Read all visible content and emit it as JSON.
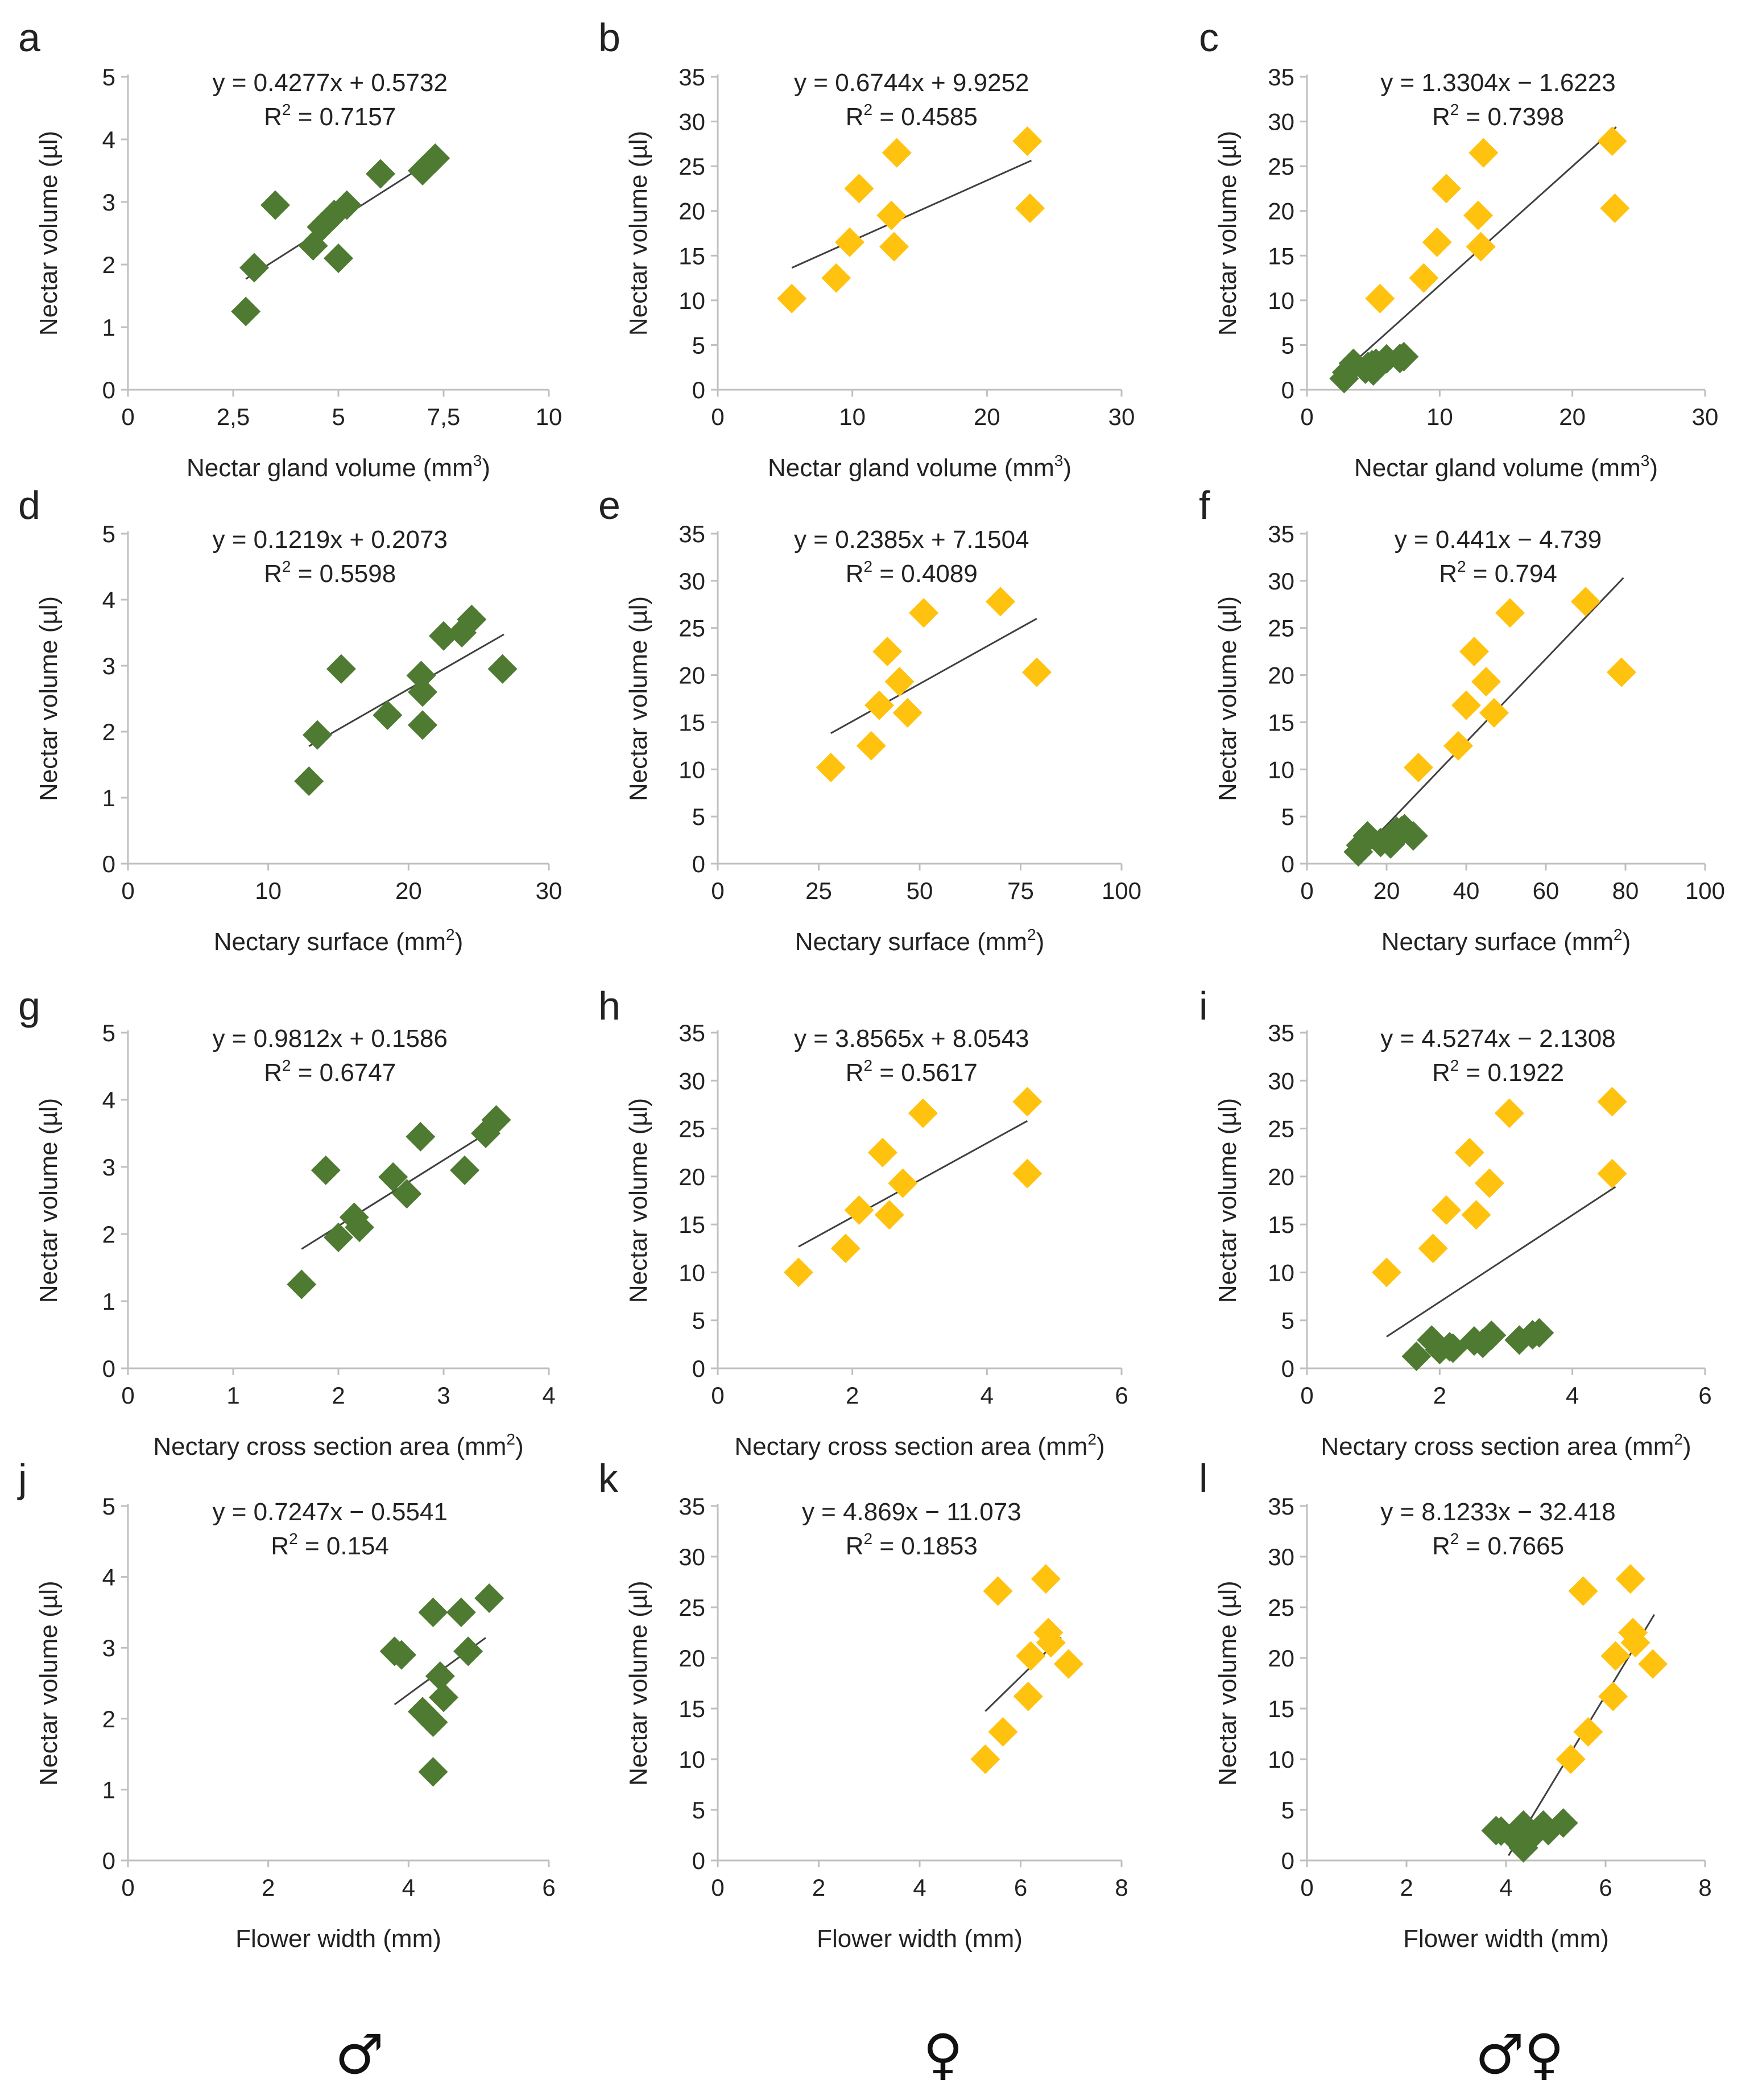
{
  "colors": {
    "male": "#4e7a32",
    "female": "#ffc20e",
    "axis": "#bfbfbf",
    "trend": "#404040"
  },
  "footer": {
    "male_symbol": "♂",
    "female_symbol": "♀",
    "both_symbol": "♂♀"
  },
  "chart_data": [
    {
      "id": "a",
      "type": "scatter",
      "ylabel": "Nectar volume (µl)",
      "xlabel_text": "Nectar gland volume (mm",
      "xlabel_sup": "3",
      "xlabel_end": ")",
      "xticks": [
        "0",
        "2,5",
        "5",
        "7,5",
        "10"
      ],
      "xlim": [
        0,
        10
      ],
      "yticks": [
        "0",
        "1",
        "2",
        "3",
        "4",
        "5"
      ],
      "ylim": [
        0,
        5
      ],
      "equation": "y = 0.4277x + 0.5732",
      "r2_label": "R",
      "r2_sup": "2",
      "r2_value": " = 0.7157",
      "trend_x": [
        2.8,
        7.3
      ],
      "series": [
        {
          "name": "male",
          "color": "#4e7a32",
          "x": [
            2.8,
            3,
            3.5,
            4.4,
            4.6,
            4.9,
            5.2,
            5,
            6,
            7,
            7.3
          ],
          "y": [
            1.25,
            1.95,
            2.95,
            2.3,
            2.6,
            2.8,
            2.95,
            2.1,
            3.45,
            3.5,
            3.7
          ]
        }
      ]
    },
    {
      "id": "b",
      "type": "scatter",
      "ylabel": "Nectar volume (µl)",
      "xlabel_text": "Nectar gland volume (mm",
      "xlabel_sup": "3",
      "xlabel_end": ")",
      "xticks": [
        "0",
        "10",
        "20",
        "30"
      ],
      "xlim": [
        0,
        30
      ],
      "yticks": [
        "0",
        "5",
        "10",
        "15",
        "20",
        "25",
        "30",
        "35"
      ],
      "ylim": [
        0,
        35
      ],
      "equation": "y = 0.6744x + 9.9252",
      "r2_label": "R",
      "r2_sup": "2",
      "r2_value": " = 0.4585",
      "trend_x": [
        5.5,
        23.3
      ],
      "series": [
        {
          "name": "female",
          "color": "#ffc20e",
          "x": [
            5.5,
            8.8,
            9.8,
            10.5,
            12.9,
            13.3,
            13.1,
            23,
            23.2
          ],
          "y": [
            10.2,
            12.5,
            16.5,
            22.5,
            19.5,
            26.5,
            16,
            27.8,
            20.3
          ]
        }
      ]
    },
    {
      "id": "c",
      "type": "scatter",
      "ylabel": "Nectar volume (µl)",
      "xlabel_text": "Nectar gland volume (mm",
      "xlabel_sup": "3",
      "xlabel_end": ")",
      "xticks": [
        "0",
        "10",
        "20",
        "30"
      ],
      "xlim": [
        0,
        30
      ],
      "yticks": [
        "0",
        "5",
        "10",
        "15",
        "20",
        "25",
        "30",
        "35"
      ],
      "ylim": [
        0,
        35
      ],
      "equation": "y = 1.3304x − 1.6223",
      "r2_label": "R",
      "r2_sup": "2",
      "r2_value": " = 0.7398",
      "trend_x": [
        2.8,
        23.3
      ],
      "series": [
        {
          "name": "female",
          "color": "#ffc20e",
          "x": [
            5.5,
            8.8,
            9.8,
            10.5,
            12.9,
            13.3,
            13.1,
            23,
            23.2
          ],
          "y": [
            10.2,
            12.5,
            16.5,
            22.5,
            19.5,
            26.5,
            16,
            27.8,
            20.3
          ]
        },
        {
          "name": "male",
          "color": "#4e7a32",
          "x": [
            2.8,
            3,
            3.5,
            4.4,
            4.6,
            4.9,
            5.2,
            5,
            6,
            7,
            7.3
          ],
          "y": [
            1.25,
            1.95,
            2.95,
            2.3,
            2.6,
            2.8,
            2.95,
            2.1,
            3.45,
            3.5,
            3.7
          ]
        }
      ]
    },
    {
      "id": "d",
      "type": "scatter",
      "ylabel": "Nectar volume (µl)",
      "xlabel_text": "Nectary surface (mm",
      "xlabel_sup": "2",
      "xlabel_end": ")",
      "xticks": [
        "0",
        "10",
        "20",
        "30"
      ],
      "xlim": [
        0,
        30
      ],
      "yticks": [
        "0",
        "1",
        "2",
        "3",
        "4",
        "5"
      ],
      "ylim": [
        0,
        5
      ],
      "equation": "y = 0.1219x + 0.2073",
      "r2_label": "R",
      "r2_sup": "2",
      "r2_value": " = 0.5598",
      "trend_x": [
        12.9,
        26.8
      ],
      "series": [
        {
          "name": "male",
          "color": "#4e7a32",
          "x": [
            12.9,
            13.5,
            15.2,
            18.5,
            20.9,
            21,
            21,
            22.5,
            23.8,
            24.5,
            26.7
          ],
          "y": [
            1.25,
            1.95,
            2.95,
            2.25,
            2.85,
            2.6,
            2.1,
            3.45,
            3.5,
            3.7,
            2.95
          ]
        }
      ]
    },
    {
      "id": "e",
      "type": "scatter",
      "ylabel": "Nectar volume (µl)",
      "xlabel_text": "Nectary surface (mm",
      "xlabel_sup": "2",
      "xlabel_end": ")",
      "xticks": [
        "0",
        "25",
        "50",
        "75",
        "100"
      ],
      "xlim": [
        0,
        100
      ],
      "yticks": [
        "0",
        "5",
        "10",
        "15",
        "20",
        "25",
        "30",
        "35"
      ],
      "ylim": [
        0,
        35
      ],
      "equation": "y = 0.2385x + 7.1504",
      "r2_label": "R",
      "r2_sup": "2",
      "r2_value": " = 0.4089",
      "trend_x": [
        28,
        79
      ],
      "series": [
        {
          "name": "female",
          "color": "#ffc20e",
          "x": [
            28,
            38,
            40,
            42,
            45,
            47,
            51,
            70,
            79
          ],
          "y": [
            10.2,
            12.5,
            16.8,
            22.5,
            19.3,
            16,
            26.6,
            27.8,
            20.3
          ]
        }
      ]
    },
    {
      "id": "f",
      "type": "scatter",
      "ylabel": "Nectar volume (µl)",
      "xlabel_text": "Nectary surface (mm",
      "xlabel_sup": "2",
      "xlabel_end": ")",
      "xticks": [
        "0",
        "20",
        "40",
        "60",
        "80",
        "100"
      ],
      "xlim": [
        0,
        100
      ],
      "yticks": [
        "0",
        "5",
        "10",
        "15",
        "20",
        "25",
        "30",
        "35"
      ],
      "ylim": [
        0,
        35
      ],
      "equation": "y = 0.441x − 4.739",
      "r2_label": "R",
      "r2_sup": "2",
      "r2_value": " = 0.794",
      "trend_x": [
        12.9,
        79.5
      ],
      "series": [
        {
          "name": "female",
          "color": "#ffc20e",
          "x": [
            28,
            38,
            40,
            42,
            45,
            47,
            51,
            70,
            79
          ],
          "y": [
            10.2,
            12.5,
            16.8,
            22.5,
            19.3,
            16,
            26.6,
            27.8,
            20.3
          ]
        },
        {
          "name": "male",
          "color": "#4e7a32",
          "x": [
            12.9,
            13.5,
            15.2,
            18.5,
            20.9,
            21,
            21,
            22.5,
            23.8,
            24.5,
            26.7
          ],
          "y": [
            1.25,
            1.95,
            2.95,
            2.25,
            2.85,
            2.6,
            2.1,
            3.45,
            3.5,
            3.7,
            2.95
          ]
        }
      ]
    },
    {
      "id": "g",
      "type": "scatter",
      "ylabel": "Nectar volume (µl)",
      "xlabel_text": "Nectary cross section area (mm",
      "xlabel_sup": "2",
      "xlabel_end": ")",
      "xticks": [
        "0",
        "1",
        "2",
        "3",
        "4"
      ],
      "xlim": [
        0,
        4
      ],
      "yticks": [
        "0",
        "1",
        "2",
        "3",
        "4",
        "5"
      ],
      "ylim": [
        0,
        5
      ],
      "equation": "y = 0.9812x + 0.1586",
      "r2_label": "R",
      "r2_sup": "2",
      "r2_value": " = 0.6747",
      "trend_x": [
        1.65,
        3.5
      ],
      "series": [
        {
          "name": "male",
          "color": "#4e7a32",
          "x": [
            1.65,
            1.88,
            2,
            2.15,
            2.2,
            2.52,
            2.65,
            2.78,
            3.2,
            3.4,
            3.5
          ],
          "y": [
            1.25,
            2.95,
            1.95,
            2.25,
            2.1,
            2.85,
            2.6,
            3.45,
            2.95,
            3.5,
            3.7
          ]
        }
      ]
    },
    {
      "id": "h",
      "type": "scatter",
      "ylabel": "Nectar volume (µl)",
      "xlabel_text": "Nectary cross section area (mm",
      "xlabel_sup": "2",
      "xlabel_end": ")",
      "xticks": [
        "0",
        "2",
        "4",
        "6"
      ],
      "xlim": [
        0,
        6
      ],
      "yticks": [
        "0",
        "5",
        "10",
        "15",
        "20",
        "25",
        "30",
        "35"
      ],
      "ylim": [
        0,
        35
      ],
      "equation": "y = 3.8565x + 8.0543",
      "r2_label": "R",
      "r2_sup": "2",
      "r2_value": " = 0.5617",
      "trend_x": [
        1.2,
        4.6
      ],
      "series": [
        {
          "name": "female",
          "color": "#ffc20e",
          "x": [
            1.2,
            1.9,
            2.1,
            2.45,
            2.55,
            2.75,
            3.05,
            4.6,
            4.6
          ],
          "y": [
            10,
            12.5,
            16.5,
            22.5,
            16,
            19.3,
            26.6,
            27.8,
            20.3
          ]
        }
      ]
    },
    {
      "id": "i",
      "type": "scatter",
      "ylabel": "Nectar volume (µl)",
      "xlabel_text": "Nectary cross section area (mm",
      "xlabel_sup": "2",
      "xlabel_end": ")",
      "xticks": [
        "0",
        "2",
        "4",
        "6"
      ],
      "xlim": [
        0,
        6
      ],
      "yticks": [
        "0",
        "5",
        "10",
        "15",
        "20",
        "25",
        "30",
        "35"
      ],
      "ylim": [
        0,
        35
      ],
      "equation": "y = 4.5274x − 2.1308",
      "r2_label": "R",
      "r2_sup": "2",
      "r2_value": " = 0.1922",
      "trend_x": [
        1.2,
        4.65
      ],
      "series": [
        {
          "name": "female",
          "color": "#ffc20e",
          "x": [
            1.2,
            1.9,
            2.1,
            2.45,
            2.55,
            2.75,
            3.05,
            4.6,
            4.6
          ],
          "y": [
            10,
            12.5,
            16.5,
            22.5,
            16,
            19.3,
            26.6,
            27.8,
            20.3
          ]
        },
        {
          "name": "male",
          "color": "#4e7a32",
          "x": [
            1.65,
            1.88,
            2,
            2.15,
            2.2,
            2.52,
            2.65,
            2.78,
            3.2,
            3.4,
            3.5
          ],
          "y": [
            1.25,
            2.95,
            1.95,
            2.25,
            2.1,
            2.85,
            2.6,
            3.45,
            2.95,
            3.5,
            3.7
          ]
        }
      ]
    },
    {
      "id": "j",
      "type": "scatter",
      "ylabel": "Nectar volume (µl)",
      "xlabel_text": "Flower width (mm)",
      "xlabel_sup": "",
      "xlabel_end": "",
      "xticks": [
        "0",
        "2",
        "4",
        "6"
      ],
      "xlim": [
        0,
        6
      ],
      "yticks": [
        "0",
        "1",
        "2",
        "3",
        "4",
        "5"
      ],
      "ylim": [
        0,
        5
      ],
      "equation": "y = 0.7247x − 0.5541",
      "r2_label": "R",
      "r2_sup": "2",
      "r2_value": " = 0.154",
      "trend_x": [
        3.8,
        5.1
      ],
      "series": [
        {
          "name": "male",
          "color": "#4e7a32",
          "x": [
            3.8,
            3.9,
            4.2,
            4.35,
            4.35,
            4.35,
            4.45,
            4.5,
            4.75,
            4.85,
            5.15
          ],
          "y": [
            2.95,
            2.9,
            2.1,
            1.95,
            1.25,
            3.5,
            2.6,
            2.3,
            3.5,
            2.95,
            3.7
          ]
        }
      ]
    },
    {
      "id": "k",
      "type": "scatter",
      "ylabel": "Nectar volume (µl)",
      "xlabel_text": "Flower width (mm)",
      "xlabel_sup": "",
      "xlabel_end": "",
      "xticks": [
        "0",
        "2",
        "4",
        "6",
        "8"
      ],
      "xlim": [
        0,
        8
      ],
      "yticks": [
        "0",
        "5",
        "10",
        "15",
        "20",
        "25",
        "30",
        "35"
      ],
      "ylim": [
        0,
        35
      ],
      "equation": "y = 4.869x − 11.073",
      "r2_label": "R",
      "r2_sup": "2",
      "r2_value": " = 0.1853",
      "trend_x": [
        5.3,
        6.8
      ],
      "series": [
        {
          "name": "female",
          "color": "#ffc20e",
          "x": [
            5.3,
            5.55,
            5.65,
            6.15,
            6.2,
            6.5,
            6.55,
            6.6,
            6.95
          ],
          "y": [
            10,
            26.6,
            12.7,
            16.2,
            20.2,
            27.8,
            22.5,
            21.5,
            19.4
          ]
        }
      ]
    },
    {
      "id": "l",
      "type": "scatter",
      "ylabel": "Nectar volume (µl)",
      "xlabel_text": "Flower width (mm)",
      "xlabel_sup": "",
      "xlabel_end": "",
      "xticks": [
        "0",
        "2",
        "4",
        "6",
        "8"
      ],
      "xlim": [
        0,
        8
      ],
      "yticks": [
        "0",
        "5",
        "10",
        "15",
        "20",
        "25",
        "30",
        "35"
      ],
      "ylim": [
        0,
        35
      ],
      "equation": "y = 8.1233x − 32.418",
      "r2_label": "R",
      "r2_sup": "2",
      "r2_value": " = 0.7665",
      "trend_x": [
        4.05,
        6.98
      ],
      "series": [
        {
          "name": "female",
          "color": "#ffc20e",
          "x": [
            5.3,
            5.55,
            5.65,
            6.15,
            6.2,
            6.5,
            6.55,
            6.6,
            6.95
          ],
          "y": [
            10,
            26.6,
            12.7,
            16.2,
            20.2,
            27.8,
            22.5,
            21.5,
            19.4
          ]
        },
        {
          "name": "male",
          "color": "#4e7a32",
          "x": [
            3.8,
            3.9,
            4.2,
            4.35,
            4.35,
            4.35,
            4.45,
            4.5,
            4.75,
            4.85,
            5.15
          ],
          "y": [
            2.95,
            2.9,
            2.1,
            1.95,
            1.25,
            3.5,
            2.6,
            2.3,
            3.5,
            2.95,
            3.7
          ]
        }
      ]
    }
  ]
}
